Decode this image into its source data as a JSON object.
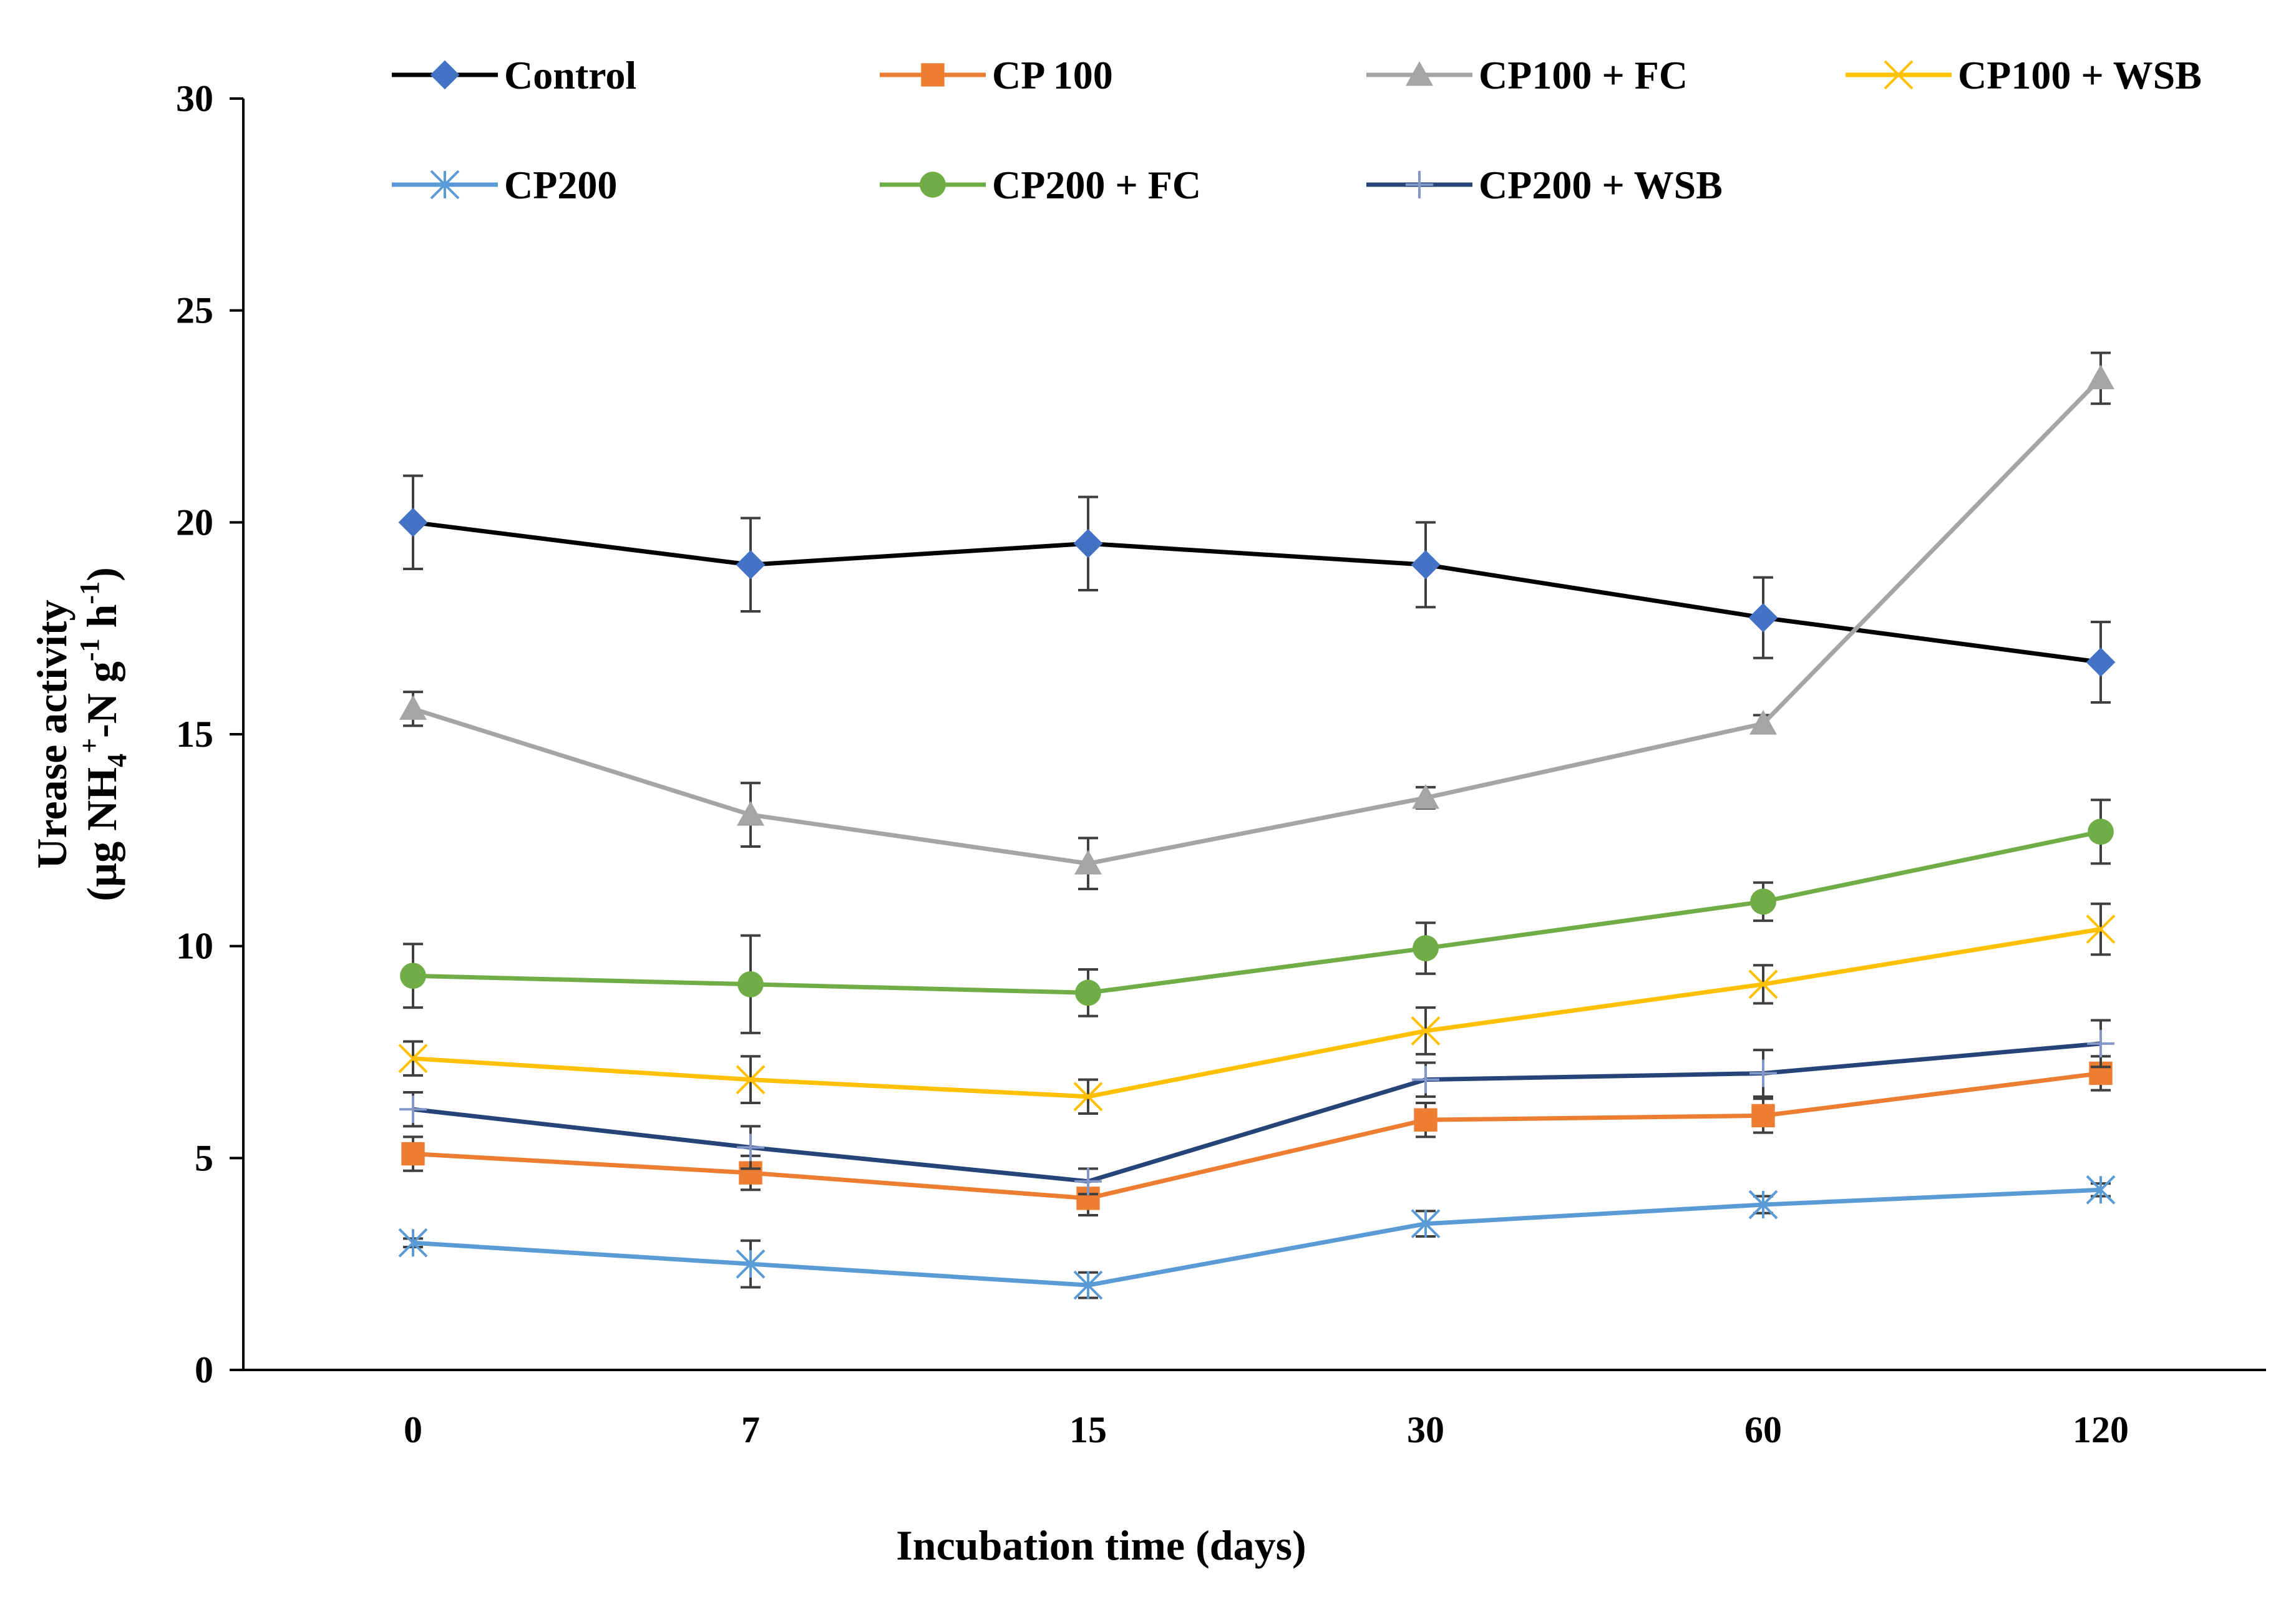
{
  "chart_data": {
    "type": "line",
    "title": "",
    "xlabel": "Incubation time (days)",
    "ylabel": {
      "line1": "Urease activity",
      "line2_prefix": "(µg NH",
      "sub4": "4",
      "sup_plus": "+",
      "mid": "-N g",
      "sup_m1a": "-1",
      "h": " h",
      "sup_m1b": "-1",
      "close": ")"
    },
    "categories": [
      "0",
      "7",
      "15",
      "30",
      "60",
      "120"
    ],
    "yticks": [
      "0",
      "5",
      "10",
      "15",
      "20",
      "25",
      "30"
    ],
    "ylim": [
      0,
      30
    ],
    "grid": false,
    "legend_position": "top",
    "series": [
      {
        "name": "Control",
        "values": [
          20.0,
          19.0,
          19.5,
          19.0,
          17.75,
          16.7
        ],
        "err": [
          1.1,
          1.1,
          1.1,
          1.0,
          0.95,
          0.95
        ],
        "color": "#000000",
        "marker": "diamond",
        "marker_color": "#4472C4"
      },
      {
        "name": "CP 100",
        "values": [
          5.1,
          4.65,
          4.05,
          5.9,
          6.0,
          7.0
        ],
        "err": [
          0.4,
          0.4,
          0.4,
          0.4,
          0.4,
          0.4
        ],
        "color": "#ED7D31",
        "marker": "square",
        "marker_color": "#ED7D31"
      },
      {
        "name": "CP100 + FC",
        "values": [
          15.6,
          13.1,
          11.95,
          13.5,
          15.25,
          23.4
        ],
        "err": [
          0.4,
          0.75,
          0.6,
          0.25,
          0.2,
          0.6
        ],
        "color": "#A5A5A5",
        "marker": "triangle",
        "marker_color": "#A5A5A5"
      },
      {
        "name": "CP100 + WSB",
        "values": [
          7.35,
          6.85,
          6.45,
          8.0,
          9.1,
          10.4
        ],
        "err": [
          0.4,
          0.55,
          0.4,
          0.55,
          0.45,
          0.6
        ],
        "color": "#FFC000",
        "marker": "x",
        "marker_color": "#FFC000"
      },
      {
        "name": "CP200",
        "values": [
          3.0,
          2.5,
          2.0,
          3.45,
          3.9,
          4.25
        ],
        "err": [
          0.1,
          0.55,
          0.3,
          0.3,
          0.2,
          0.15
        ],
        "color": "#5B9BD5",
        "marker": "star",
        "marker_color": "#5B9BD5"
      },
      {
        "name": "CP200 + FC",
        "values": [
          9.3,
          9.1,
          8.9,
          9.95,
          11.05,
          12.7
        ],
        "err": [
          0.75,
          1.15,
          0.55,
          0.6,
          0.45,
          0.75
        ],
        "color": "#70AD47",
        "marker": "circle",
        "marker_color": "#70AD47"
      },
      {
        "name": "CP200 + WSB",
        "values": [
          6.15,
          5.25,
          4.45,
          6.85,
          7.0,
          7.7
        ],
        "err": [
          0.4,
          0.5,
          0.3,
          0.4,
          0.55,
          0.55
        ],
        "color": "#264478",
        "marker": "plus",
        "marker_color": "#8497C9"
      }
    ]
  }
}
